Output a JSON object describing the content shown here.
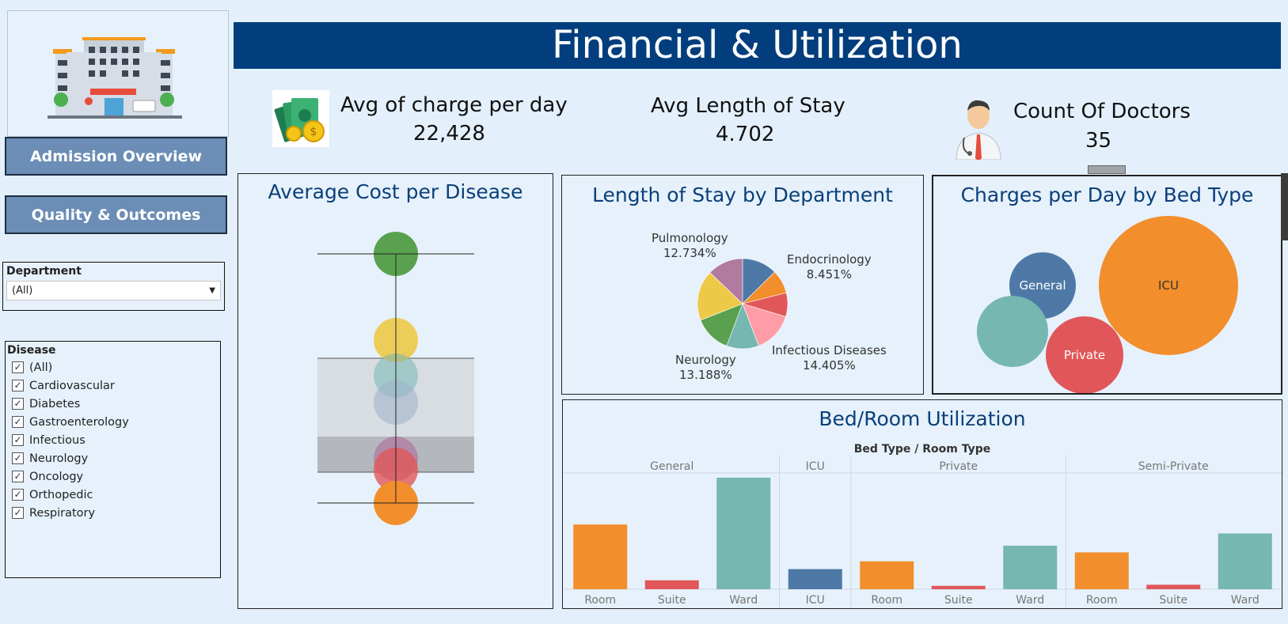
{
  "header": {
    "title": "Financial & Utilization"
  },
  "nav": {
    "admission": "Admission Overview",
    "quality": "Quality & Outcomes"
  },
  "filters": {
    "department_label": "Department",
    "department_value": "(All)",
    "disease_label": "Disease",
    "diseases": [
      "(All)",
      "Cardiovascular",
      "Diabetes",
      "Gastroenterology",
      "Infectious",
      "Neurology",
      "Oncology",
      "Orthopedic",
      "Respiratory"
    ]
  },
  "kpis": {
    "charge": {
      "label": "Avg of charge per day",
      "value": "22,428"
    },
    "stay": {
      "label": "Avg Length of Stay",
      "value": "4.702"
    },
    "doctors": {
      "label": "Count Of Doctors",
      "value": "35"
    }
  },
  "colors": {
    "blue": "#4e79a7",
    "orange": "#f28e2b",
    "red": "#e15759",
    "teal": "#76b7b2",
    "green": "#59a14f",
    "yellow": "#edc948",
    "purple": "#b07aa1",
    "pink": "#ff9da7",
    "navy": "#023e7d"
  },
  "chart_data": [
    {
      "type": "scatter",
      "title": "Average Cost per Disease",
      "note": "box plot of disease average costs; values not labeled",
      "series": [
        {
          "color": "#59a14f"
        },
        {
          "color": "#edc948"
        },
        {
          "color": "#76b7b2"
        },
        {
          "color": "#a0b4cc"
        },
        {
          "color": "#b07aa1"
        },
        {
          "color": "#e15759"
        },
        {
          "color": "#f28e2b"
        }
      ]
    },
    {
      "type": "pie",
      "title": "Length of Stay by Department",
      "labels": [
        {
          "name": "Pulmonology",
          "pct": "12.734%"
        },
        {
          "name": "Endocrinology",
          "pct": "8.451%"
        },
        {
          "name": "Infectious Diseases",
          "pct": "14.405%"
        },
        {
          "name": "Neurology",
          "pct": "13.188%"
        }
      ],
      "slices": [
        {
          "value": 12.5,
          "color": "#4e79a7"
        },
        {
          "value": 8.451,
          "color": "#f28e2b"
        },
        {
          "value": 8.5,
          "color": "#e15759"
        },
        {
          "value": 14.405,
          "color": "#ff9da7"
        },
        {
          "value": 11.5,
          "color": "#76b7b2"
        },
        {
          "value": 13.188,
          "color": "#59a14f"
        },
        {
          "value": 18.0,
          "color": "#edc948"
        },
        {
          "value": 12.734,
          "color": "#b07aa1"
        }
      ]
    },
    {
      "type": "scatter",
      "title": "Charges per Day by Bed Type",
      "note": "packed bubble chart",
      "bubbles": [
        {
          "label": "ICU",
          "value": 100,
          "color": "#f28e2b"
        },
        {
          "label": "General",
          "value": 22,
          "color": "#4e79a7"
        },
        {
          "label": "Private",
          "value": 31,
          "color": "#e15759"
        },
        {
          "label": "",
          "value": 26,
          "color": "#76b7b2"
        }
      ]
    },
    {
      "type": "bar",
      "title": "Bed/Room Utilization",
      "axis_title": "Bed Type  /  Room Type",
      "groups": [
        {
          "name": "General",
          "bars": [
            {
              "label": "Room",
              "value": 58,
              "color": "#f28e2b"
            },
            {
              "label": "Suite",
              "value": 8,
              "color": "#e15759"
            },
            {
              "label": "Ward",
              "value": 100,
              "color": "#76b7b2"
            }
          ]
        },
        {
          "name": "ICU",
          "bars": [
            {
              "label": "ICU",
              "value": 18,
              "color": "#4e79a7"
            }
          ]
        },
        {
          "name": "Private",
          "bars": [
            {
              "label": "Room",
              "value": 25,
              "color": "#f28e2b"
            },
            {
              "label": "Suite",
              "value": 3,
              "color": "#e15759"
            },
            {
              "label": "Ward",
              "value": 39,
              "color": "#76b7b2"
            }
          ]
        },
        {
          "name": "Semi-Private",
          "bars": [
            {
              "label": "Room",
              "value": 33,
              "color": "#f28e2b"
            },
            {
              "label": "Suite",
              "value": 4,
              "color": "#e15759"
            },
            {
              "label": "Ward",
              "value": 50,
              "color": "#76b7b2"
            }
          ]
        }
      ]
    }
  ]
}
